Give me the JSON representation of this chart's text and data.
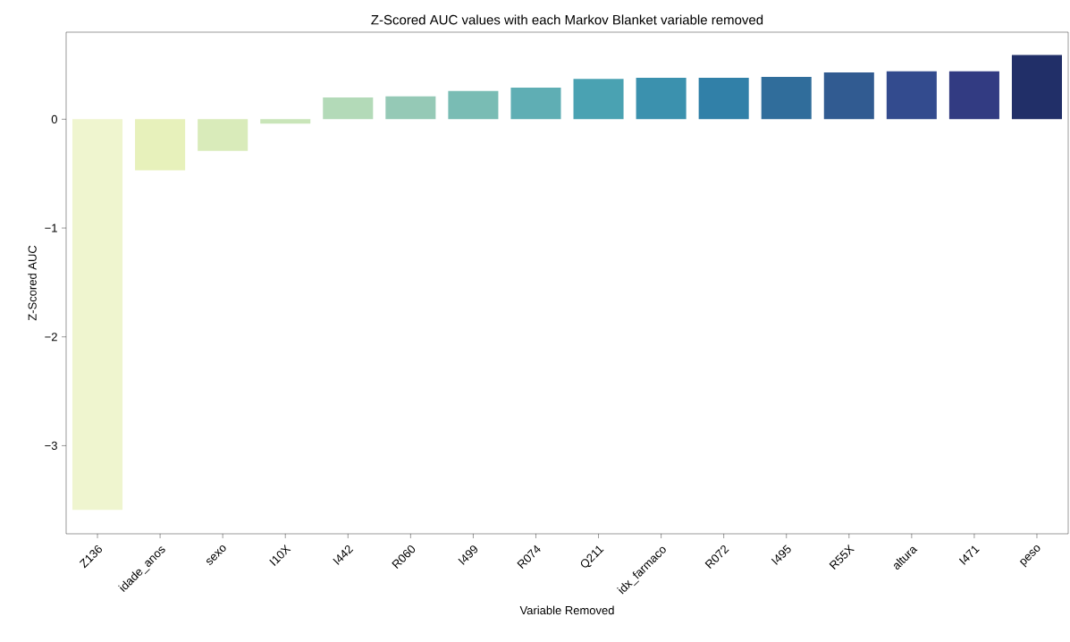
{
  "chart_data": {
    "type": "bar",
    "title": "Z-Scored AUC values with each Markov Blanket variable removed",
    "xlabel": "Variable Removed",
    "ylabel": "Z-Scored AUC",
    "categories": [
      "Z136",
      "idade_anos",
      "sexo",
      "I10X",
      "I442",
      "R060",
      "I499",
      "R074",
      "Q211",
      "idx_farmaco",
      "R072",
      "I495",
      "R55X",
      "altura",
      "I471",
      "peso"
    ],
    "values": [
      -3.59,
      -0.47,
      -0.29,
      -0.04,
      0.2,
      0.21,
      0.26,
      0.29,
      0.37,
      0.38,
      0.38,
      0.39,
      0.43,
      0.44,
      0.44,
      0.59
    ],
    "colors": [
      "#eff5cf",
      "#e7f1bb",
      "#d9ebba",
      "#c9e5b9",
      "#b3dab8",
      "#95c9b6",
      "#79bcb4",
      "#5faeb4",
      "#4aa2b2",
      "#3b91ae",
      "#3180a8",
      "#306d9b",
      "#315b91",
      "#334b8e",
      "#323b82",
      "#212f68"
    ],
    "ylim": [
      -3.81,
      0.8
    ],
    "yticks": [
      {
        "value": -3,
        "label": "−3"
      },
      {
        "value": -2,
        "label": "−2"
      },
      {
        "value": -1,
        "label": "−1"
      },
      0
    ],
    "grid": false
  }
}
